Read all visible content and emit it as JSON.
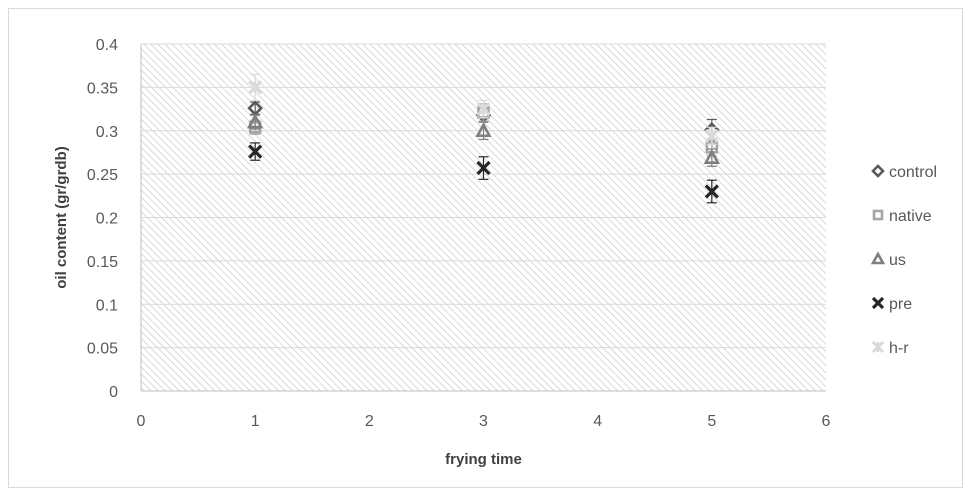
{
  "chart_data": {
    "type": "scatter",
    "xlabel": "frying time",
    "ylabel": "oil content (gr/grdb)",
    "xlim": [
      0,
      6
    ],
    "ylim": [
      0,
      0.4
    ],
    "x_ticks": [
      "0",
      "1",
      "2",
      "3",
      "4",
      "5",
      "6"
    ],
    "y_ticks": [
      "0",
      "0.05",
      "0.1",
      "0.15",
      "0.2",
      "0.25",
      "0.3",
      "0.35",
      "0.4"
    ],
    "grid": true,
    "legend_position": "right",
    "series": [
      {
        "name": "control",
        "marker": "diamond",
        "color": "#595959",
        "points": [
          {
            "x": 1,
            "y": 0.326,
            "err": 0.007
          },
          {
            "x": 3,
            "y": 0.318,
            "err": 0.008
          },
          {
            "x": 5,
            "y": 0.301,
            "err": 0.012
          }
        ]
      },
      {
        "name": "native",
        "marker": "square",
        "color": "#a6a6a6",
        "points": [
          {
            "x": 1,
            "y": 0.304,
            "err": 0.008
          },
          {
            "x": 3,
            "y": 0.321,
            "err": 0.01
          },
          {
            "x": 5,
            "y": 0.281,
            "err": 0.01
          }
        ]
      },
      {
        "name": "us",
        "marker": "triangle",
        "color": "#7f7f7f",
        "points": [
          {
            "x": 1,
            "y": 0.31,
            "err": 0.008
          },
          {
            "x": 3,
            "y": 0.3,
            "err": 0.01
          },
          {
            "x": 5,
            "y": 0.269,
            "err": 0.01
          }
        ]
      },
      {
        "name": "pre",
        "marker": "x",
        "color": "#262626",
        "points": [
          {
            "x": 1,
            "y": 0.276,
            "err": 0.01
          },
          {
            "x": 3,
            "y": 0.257,
            "err": 0.013
          },
          {
            "x": 5,
            "y": 0.23,
            "err": 0.013
          }
        ]
      },
      {
        "name": "h-r",
        "marker": "star",
        "color": "#d9d9d9",
        "points": [
          {
            "x": 1,
            "y": 0.35,
            "err": 0.015
          },
          {
            "x": 3,
            "y": 0.325,
            "err": 0.01
          },
          {
            "x": 5,
            "y": 0.294,
            "err": 0.01
          }
        ]
      }
    ]
  }
}
